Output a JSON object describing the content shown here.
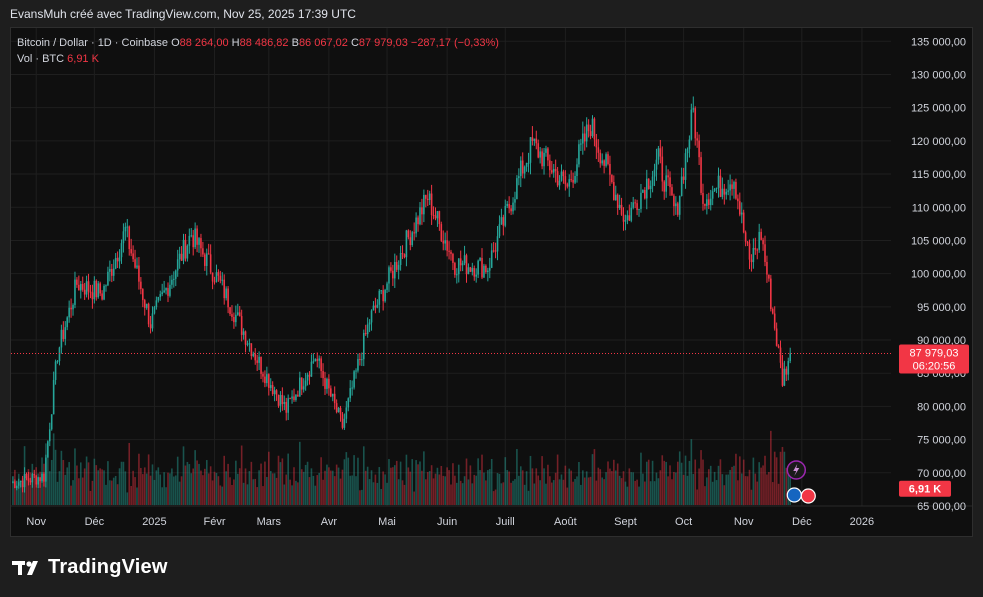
{
  "header": {
    "credit": "EvansMuh créé avec TradingView.com, Nov 25, 2025 17:39 UTC"
  },
  "legend": {
    "symbol": "Bitcoin / Dollar · 1D · Coinbase",
    "o_label": "O",
    "o_value": "88 264,00",
    "h_label": "H",
    "h_value": "88 486,82",
    "b_label": "B",
    "b_value": "86 067,02",
    "c_label": "C",
    "c_value": "87 979,03",
    "change": "−287,17 (−0,33%)",
    "vol_label": "Vol · BTC",
    "vol_value": "6,91 K"
  },
  "price_tag": {
    "price": "87 979,03",
    "countdown": "06:20:56",
    "volume": "6,91 K"
  },
  "footer": {
    "brand": "TradingView"
  },
  "colors": {
    "up": "#26a69a",
    "down": "#f23645",
    "background": "#0f0f0f",
    "page": "#1e1e1e",
    "grid": "#1f1f1f",
    "text": "#d1d4dc"
  },
  "chart_data": {
    "type": "candlestick",
    "title": "Bitcoin / Dollar · 1D · Coinbase",
    "xlabel": "",
    "ylabel": "",
    "y_ticks": [
      "135 000,00",
      "130 000,00",
      "125 000,00",
      "120 000,00",
      "115 000,00",
      "110 000,00",
      "105 000,00",
      "100 000,00",
      "95 000,00",
      "90 000,00",
      "85 000,00",
      "80 000,00",
      "75 000,00",
      "70 000,00",
      "65 000,00"
    ],
    "y_tick_values": [
      135000,
      130000,
      125000,
      120000,
      115000,
      110000,
      105000,
      100000,
      95000,
      90000,
      85000,
      80000,
      75000,
      70000,
      65000
    ],
    "ylim": [
      65000,
      137000
    ],
    "x_ticks": [
      "Nov",
      "Déc",
      "2025",
      "Févr",
      "Mars",
      "Avr",
      "Mai",
      "Juin",
      "Juill",
      "Août",
      "Sept",
      "Oct",
      "Nov",
      "Déc",
      "2026"
    ],
    "x_tick_dates": [
      "2024-11-01",
      "2024-12-01",
      "2025-01-01",
      "2025-02-01",
      "2025-03-01",
      "2025-04-01",
      "2025-05-01",
      "2025-06-01",
      "2025-07-01",
      "2025-08-01",
      "2025-09-01",
      "2025-10-01",
      "2025-11-01",
      "2025-12-01",
      "2026-01-01"
    ],
    "x_range": [
      "2024-10-19",
      "2026-01-16"
    ],
    "grid": true,
    "close_anchors": [
      {
        "date": "2024-10-19",
        "close": 68500
      },
      {
        "date": "2024-11-05",
        "close": 69500
      },
      {
        "date": "2024-11-12",
        "close": 88000
      },
      {
        "date": "2024-11-22",
        "close": 98500
      },
      {
        "date": "2024-12-05",
        "close": 97000
      },
      {
        "date": "2024-12-17",
        "close": 106500
      },
      {
        "date": "2024-12-30",
        "close": 92500
      },
      {
        "date": "2025-01-20",
        "close": 106000
      },
      {
        "date": "2025-02-03",
        "close": 99000
      },
      {
        "date": "2025-02-25",
        "close": 86000
      },
      {
        "date": "2025-03-10",
        "close": 79500
      },
      {
        "date": "2025-03-25",
        "close": 87500
      },
      {
        "date": "2025-04-08",
        "close": 77000
      },
      {
        "date": "2025-04-22",
        "close": 93000
      },
      {
        "date": "2025-05-08",
        "close": 103000
      },
      {
        "date": "2025-05-22",
        "close": 111500
      },
      {
        "date": "2025-06-05",
        "close": 101500
      },
      {
        "date": "2025-06-22",
        "close": 101000
      },
      {
        "date": "2025-07-10",
        "close": 116000
      },
      {
        "date": "2025-07-15",
        "close": 119500
      },
      {
        "date": "2025-08-02",
        "close": 113000
      },
      {
        "date": "2025-08-14",
        "close": 122500
      },
      {
        "date": "2025-09-01",
        "close": 108000
      },
      {
        "date": "2025-09-18",
        "close": 117000
      },
      {
        "date": "2025-09-27",
        "close": 109000
      },
      {
        "date": "2025-10-06",
        "close": 124500
      },
      {
        "date": "2025-10-11",
        "close": 111500
      },
      {
        "date": "2025-10-27",
        "close": 114500
      },
      {
        "date": "2025-11-04",
        "close": 101500
      },
      {
        "date": "2025-11-10",
        "close": 106000
      },
      {
        "date": "2025-11-21",
        "close": 84000
      },
      {
        "date": "2025-11-25",
        "close": 87979
      }
    ],
    "last_price": 87979.03,
    "volume_label": "Vol · BTC"
  }
}
